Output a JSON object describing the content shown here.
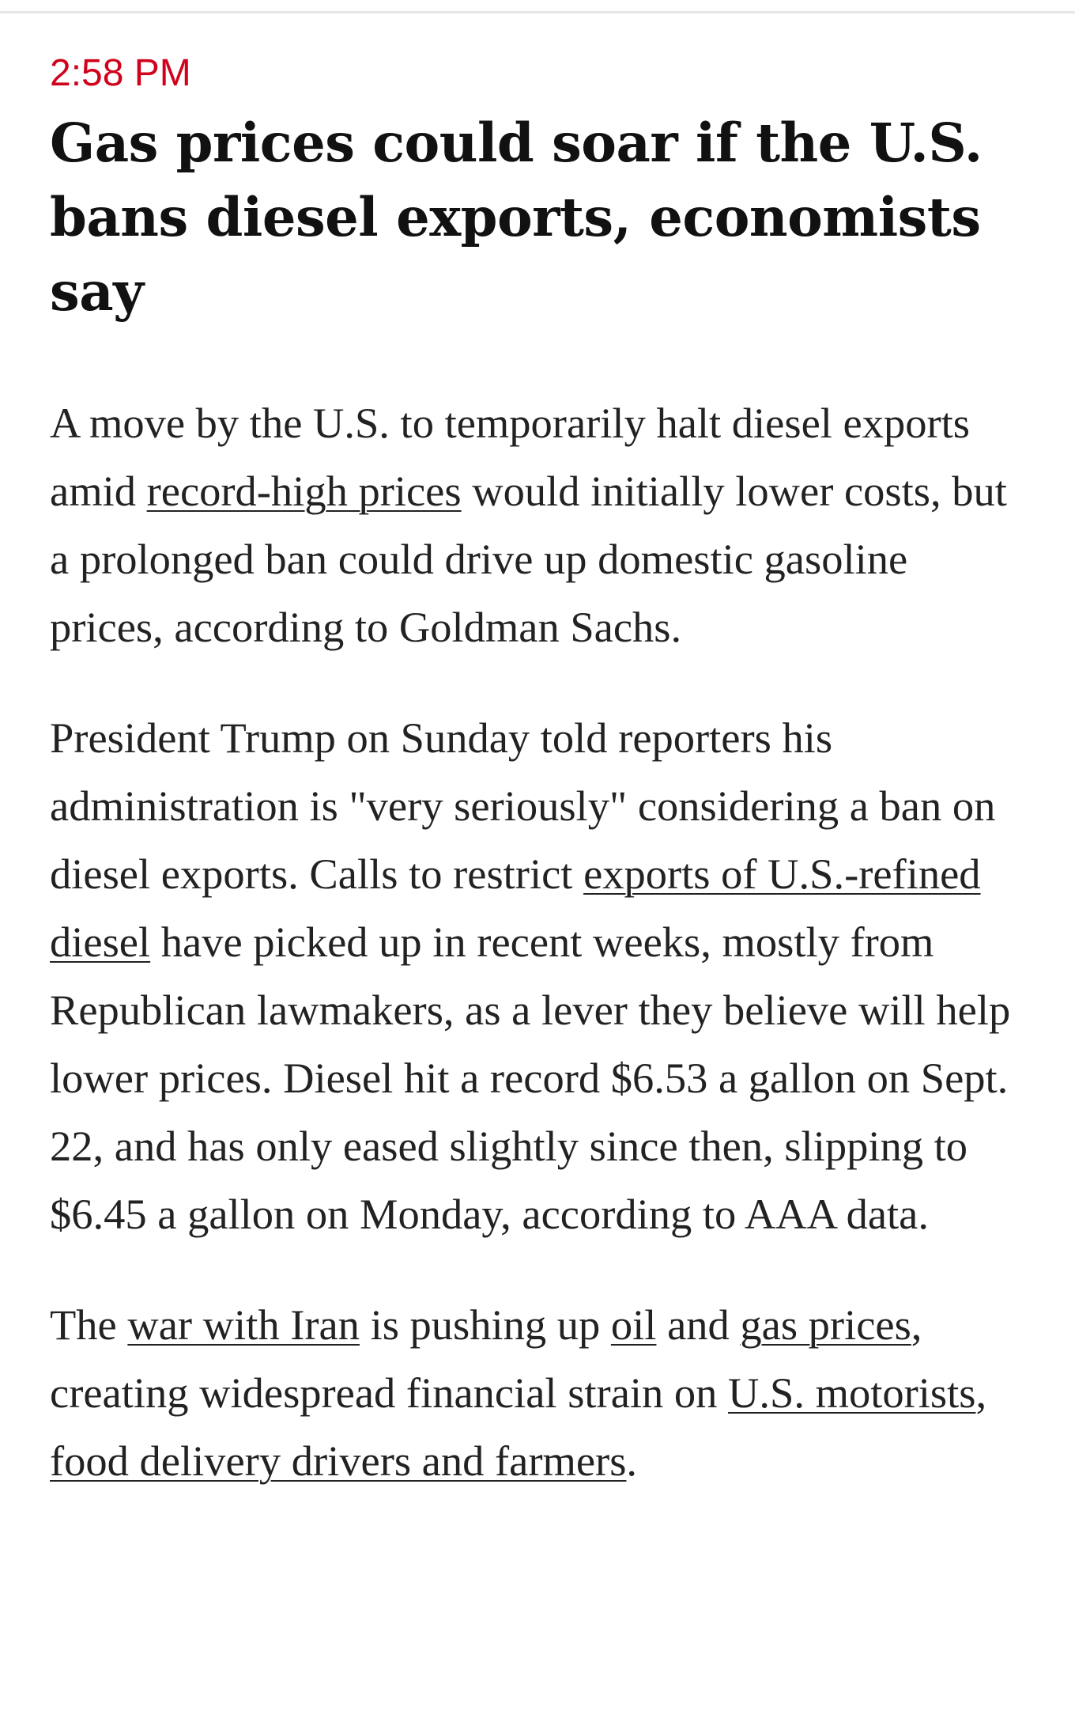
{
  "article": {
    "time": "2:58 PM",
    "headline": "Gas prices could soar if the U.S. bans diesel exports, economists say",
    "p1": {
      "t1": "A move by the U.S. to temporarily halt diesel exports amid ",
      "link1": "record-high prices",
      "t2": " would initially lower costs, but a prolonged ban could drive up domestic gasoline prices, according to Goldman Sachs."
    },
    "p2": {
      "t1": "President Trump on Sunday told reporters his administration is \"very seriously\" considering a ban on diesel exports. Calls to restrict ",
      "link1": "exports of U.S.-refined diesel",
      "t2": " have picked up in recent weeks, mostly from Republican lawmakers, as a lever they believe will help lower prices. Diesel hit a record $6.53 a gallon on Sept. 22, and has only eased slightly since then, slipping to $6.45 a gallon on Monday, according to AAA data."
    },
    "p3": {
      "t1": "The ",
      "link1": "war with Iran",
      "t2": " is pushing up ",
      "link2": "oil",
      "t3": " and ",
      "link3": "gas prices",
      "t4": ", creating widespread financial strain on ",
      "link4": "U.S. motorists",
      "t5": ", ",
      "link5": "food delivery drivers and farmers",
      "t6": "."
    }
  },
  "colors": {
    "timestamp": "#d0021b",
    "headline": "#111111",
    "body_text": "#222222"
  }
}
